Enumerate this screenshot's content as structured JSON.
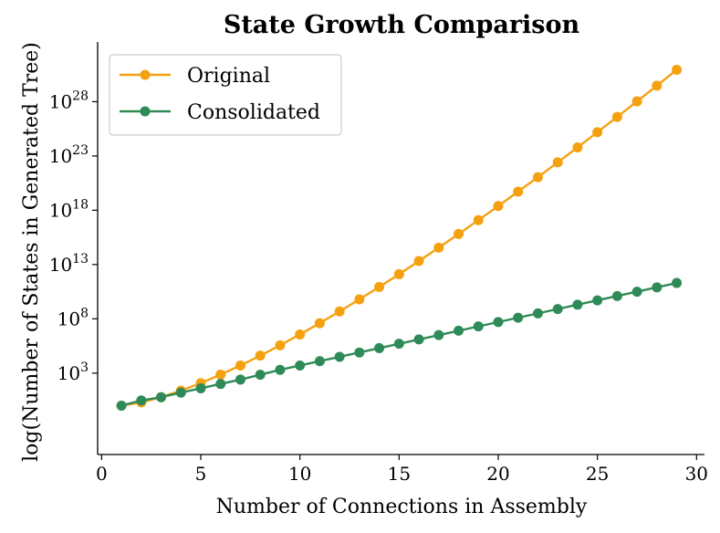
{
  "chart_data": {
    "type": "line",
    "title": "State Growth Comparison",
    "xlabel": "Number of Connections in Assembly",
    "ylabel": "log(Number of States in Generated Tree)",
    "xlim": [
      -0.2,
      30.4
    ],
    "ylim_log10": [
      -4.5,
      33.5
    ],
    "yscale": "log",
    "x_ticks": [
      0,
      5,
      10,
      15,
      20,
      25,
      30
    ],
    "y_ticks": [
      {
        "base": "10",
        "exp": "3",
        "value": 3
      },
      {
        "base": "10",
        "exp": "8",
        "value": 8
      },
      {
        "base": "10",
        "exp": "13",
        "value": 13
      },
      {
        "base": "10",
        "exp": "18",
        "value": 18
      },
      {
        "base": "10",
        "exp": "23",
        "value": 23
      },
      {
        "base": "10",
        "exp": "28",
        "value": 28
      }
    ],
    "legend_position": "top-left",
    "series": [
      {
        "name": "Original",
        "color": "#f5a10f",
        "x": [
          1,
          2,
          3,
          4,
          5,
          6,
          7,
          8,
          9,
          10,
          11,
          12,
          13,
          14,
          15,
          16,
          17,
          18,
          19,
          20,
          21,
          22,
          23,
          24,
          25,
          26,
          27,
          28,
          29
        ],
        "log10_values": [
          0.0,
          0.3,
          0.78,
          1.38,
          2.08,
          2.86,
          3.7,
          4.61,
          5.56,
          6.56,
          7.6,
          8.68,
          9.79,
          10.94,
          12.11,
          13.32,
          14.55,
          15.81,
          17.09,
          18.39,
          19.71,
          21.05,
          22.41,
          23.79,
          25.19,
          26.6,
          28.03,
          29.48,
          30.94
        ]
      },
      {
        "name": "Consolidated",
        "color": "#2e8b57",
        "x": [
          1,
          2,
          3,
          4,
          5,
          6,
          7,
          8,
          9,
          10,
          11,
          12,
          13,
          14,
          15,
          16,
          17,
          18,
          19,
          20,
          21,
          22,
          23,
          24,
          25,
          26,
          27,
          28,
          29
        ],
        "log10_values": [
          0.0,
          0.48,
          0.78,
          1.2,
          1.6,
          2.0,
          2.4,
          2.85,
          3.3,
          3.7,
          4.1,
          4.5,
          4.9,
          5.3,
          5.7,
          6.1,
          6.5,
          6.9,
          7.3,
          7.7,
          8.1,
          8.5,
          8.9,
          9.3,
          9.7,
          10.1,
          10.5,
          10.9,
          11.3
        ]
      }
    ]
  }
}
